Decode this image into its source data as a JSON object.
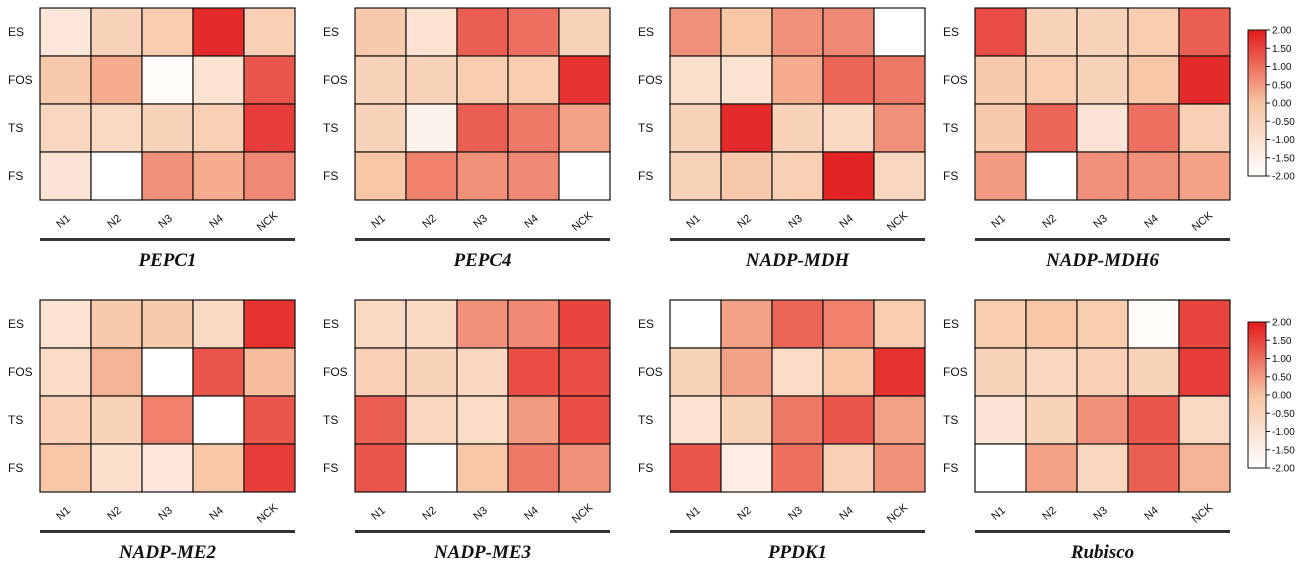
{
  "colors": {
    "low": "#ffffff",
    "mid": "#f7c4a2",
    "high": "#e31a1c"
  },
  "chart_data": {
    "type": "heatmap",
    "rows": [
      "ES",
      "FOS",
      "TS",
      "FS"
    ],
    "columns": [
      "N1",
      "N2",
      "N3",
      "N4",
      "NCK"
    ],
    "zlim": [
      -2,
      2
    ],
    "colorbar_ticks": [
      "2.00",
      "1.50",
      "1.00",
      "0.50",
      "0.00",
      "-0.50",
      "-1.00",
      "-1.50",
      "-2.00"
    ],
    "panels": [
      {
        "title": "PEPC1",
        "values": [
          [
            -1.2,
            -0.5,
            -0.3,
            1.8,
            -0.4
          ],
          [
            -0.2,
            0.3,
            -1.9,
            -1.0,
            1.3
          ],
          [
            -0.6,
            -0.7,
            -0.5,
            -0.4,
            1.6
          ],
          [
            -1.1,
            -2.0,
            0.6,
            0.3,
            0.7
          ]
        ]
      },
      {
        "title": "PEPC4",
        "values": [
          [
            -0.2,
            -1.0,
            1.2,
            1.0,
            -0.5
          ],
          [
            -0.5,
            -0.5,
            -0.3,
            -0.3,
            1.7
          ],
          [
            -0.5,
            -1.6,
            1.2,
            0.9,
            0.4
          ],
          [
            -0.1,
            0.8,
            0.6,
            0.7,
            -2.0
          ]
        ]
      },
      {
        "title": "NADP-MDH",
        "values": [
          [
            0.6,
            -0.1,
            0.6,
            0.7,
            -2.0
          ],
          [
            -0.9,
            -1.0,
            0.3,
            1.1,
            0.9
          ],
          [
            -0.5,
            1.8,
            -0.5,
            -0.7,
            0.6
          ],
          [
            -0.5,
            -0.2,
            -0.4,
            1.9,
            -0.6
          ]
        ]
      },
      {
        "title": "NADP-MDH6",
        "values": [
          [
            1.4,
            -0.5,
            -0.5,
            -0.3,
            1.2
          ],
          [
            -0.2,
            -0.3,
            -0.5,
            -0.1,
            1.8
          ],
          [
            -0.2,
            1.1,
            -1.1,
            1.0,
            -0.4
          ],
          [
            0.5,
            -2.0,
            0.6,
            0.6,
            0.4
          ]
        ]
      },
      {
        "title": "NADP-ME2",
        "values": [
          [
            -1.0,
            -0.2,
            -0.2,
            -0.7,
            1.7
          ],
          [
            -0.8,
            0.2,
            -2.0,
            1.3,
            0.1
          ],
          [
            -0.4,
            -0.5,
            0.8,
            -2.0,
            1.3
          ],
          [
            -0.1,
            -0.9,
            -1.2,
            -0.1,
            1.6
          ]
        ]
      },
      {
        "title": "NADP-ME3",
        "values": [
          [
            -0.7,
            -0.7,
            0.6,
            0.7,
            1.5
          ],
          [
            -0.4,
            -0.5,
            -0.6,
            1.4,
            1.4
          ],
          [
            1.2,
            -0.6,
            -0.8,
            0.5,
            1.4
          ],
          [
            1.3,
            -2.0,
            -0.1,
            0.9,
            0.6
          ]
        ]
      },
      {
        "title": "PPDK1",
        "values": [
          [
            -2.0,
            0.4,
            1.1,
            0.8,
            -0.3
          ],
          [
            -0.5,
            0.4,
            -0.8,
            -0.1,
            1.7
          ],
          [
            -1.0,
            -0.5,
            0.9,
            1.3,
            0.4
          ],
          [
            1.3,
            -1.4,
            1.0,
            -0.4,
            0.6
          ]
        ]
      },
      {
        "title": "Rubisco",
        "values": [
          [
            -0.3,
            -0.1,
            -0.3,
            -1.9,
            1.5
          ],
          [
            -0.5,
            -0.6,
            -0.4,
            -0.5,
            1.6
          ],
          [
            -1.1,
            -0.5,
            0.6,
            1.3,
            -0.7
          ],
          [
            -2.0,
            0.4,
            -0.6,
            1.2,
            0.2
          ]
        ]
      }
    ]
  }
}
